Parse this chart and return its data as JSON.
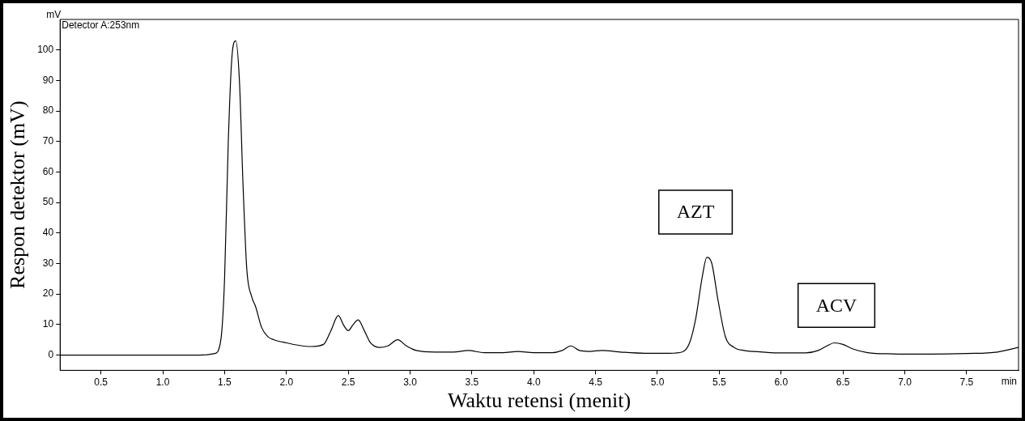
{
  "chart_data": {
    "type": "line",
    "xlabel": "Waktu retensi (menit)",
    "ylabel": "Respon detektor (mV)",
    "annotations": [
      "mV",
      "min",
      "Detector A:253nm",
      "AZT",
      "ACV"
    ],
    "xlim": [
      0.17,
      7.92
    ],
    "ylim": [
      -5,
      110
    ],
    "xticks": [
      0.5,
      {
        "value": 1,
        "label": "1.0"
      },
      1.5,
      {
        "value": 2,
        "label": "2.0"
      },
      2.5,
      {
        "value": 3,
        "label": "3.0"
      },
      3.5,
      {
        "value": 4,
        "label": "4.0"
      },
      4.5,
      {
        "value": 5,
        "label": "5.0"
      },
      5.5,
      {
        "value": 6,
        "label": "6.0"
      },
      6.5,
      {
        "value": 7,
        "label": "7.0"
      },
      7.5
    ],
    "yticks": [
      0,
      10,
      20,
      30,
      40,
      50,
      60,
      70,
      80,
      90,
      100
    ],
    "grid": false,
    "marker": "none",
    "line_style": "solid",
    "series": [
      {
        "color": "#000000",
        "x": [
          0.17,
          0.5,
          1.0,
          1.3,
          1.42,
          1.47,
          1.5,
          1.53,
          1.56,
          1.59,
          1.62,
          1.65,
          1.68,
          1.72,
          1.75,
          1.8,
          1.85,
          1.9,
          2.0,
          2.1,
          2.2,
          2.3,
          2.36,
          2.42,
          2.46,
          2.5,
          2.54,
          2.58,
          2.63,
          2.68,
          2.75,
          2.82,
          2.9,
          2.97,
          3.05,
          3.2,
          3.35,
          3.47,
          3.6,
          3.75,
          3.87,
          4.0,
          4.15,
          4.23,
          4.3,
          4.37,
          4.45,
          4.55,
          4.7,
          4.9,
          5.1,
          5.2,
          5.26,
          5.31,
          5.36,
          5.4,
          5.44,
          5.49,
          5.55,
          5.62,
          5.7,
          5.85,
          6.0,
          6.2,
          6.3,
          6.37,
          6.43,
          6.5,
          6.58,
          6.7,
          6.9,
          7.2,
          7.5,
          7.75,
          7.92
        ],
        "values": [
          0,
          0,
          0,
          0,
          0.5,
          5,
          25,
          70,
          98,
          103,
          90,
          55,
          28,
          19,
          16,
          9,
          6,
          5,
          4,
          3.2,
          2.8,
          3.5,
          8,
          13,
          10,
          8,
          10,
          11.5,
          8,
          4,
          2.5,
          3,
          5,
          3,
          1.5,
          1,
          1,
          1.5,
          0.8,
          0.8,
          1.2,
          0.8,
          0.8,
          1.5,
          3,
          1.5,
          1.2,
          1.5,
          1,
          0.6,
          0.6,
          1,
          4,
          12,
          25,
          32,
          30,
          18,
          6,
          2.5,
          1.5,
          1,
          0.7,
          0.7,
          1.5,
          3,
          4,
          3.5,
          2,
          0.8,
          0.4,
          0.3,
          0.5,
          1,
          2.5
        ]
      }
    ]
  }
}
